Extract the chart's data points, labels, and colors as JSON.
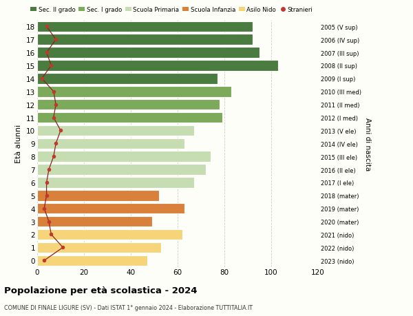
{
  "ages": [
    18,
    17,
    16,
    15,
    14,
    13,
    12,
    11,
    10,
    9,
    8,
    7,
    6,
    5,
    4,
    3,
    2,
    1,
    0
  ],
  "bar_values": [
    92,
    92,
    95,
    103,
    77,
    83,
    78,
    79,
    67,
    63,
    74,
    72,
    67,
    52,
    63,
    49,
    62,
    53,
    47
  ],
  "bar_colors": [
    "#4a7c3f",
    "#4a7c3f",
    "#4a7c3f",
    "#4a7c3f",
    "#4a7c3f",
    "#7aaa5a",
    "#7aaa5a",
    "#7aaa5a",
    "#c5ddb0",
    "#c5ddb0",
    "#c5ddb0",
    "#c5ddb0",
    "#c5ddb0",
    "#d9803a",
    "#d9803a",
    "#d9803a",
    "#f5d47a",
    "#f5d47a",
    "#f5d47a"
  ],
  "stranieri_values": [
    4,
    8,
    4,
    6,
    2,
    7,
    8,
    7,
    10,
    8,
    7,
    5,
    4,
    4,
    3,
    5,
    6,
    11,
    3
  ],
  "right_labels": [
    "2005 (V sup)",
    "2006 (IV sup)",
    "2007 (III sup)",
    "2008 (II sup)",
    "2009 (I sup)",
    "2010 (III med)",
    "2011 (II med)",
    "2012 (I med)",
    "2013 (V ele)",
    "2014 (IV ele)",
    "2015 (III ele)",
    "2016 (II ele)",
    "2017 (I ele)",
    "2018 (mater)",
    "2019 (mater)",
    "2020 (mater)",
    "2021 (nido)",
    "2022 (nido)",
    "2023 (nido)"
  ],
  "ylabel": "Età alunni",
  "right_ylabel": "Anni di nascita",
  "xlim": [
    0,
    120
  ],
  "xticks": [
    0,
    20,
    40,
    60,
    80,
    100,
    120
  ],
  "title": "Popolazione per età scolastica - 2024",
  "subtitle": "COMUNE DI FINALE LIGURE (SV) - Dati ISTAT 1° gennaio 2024 - Elaborazione TUTTITALIA.IT",
  "legend_entries": [
    "Sec. II grado",
    "Sec. I grado",
    "Scuola Primaria",
    "Scuola Infanzia",
    "Asilo Nido",
    "Stranieri"
  ],
  "legend_colors": [
    "#4a7c3f",
    "#7aaa5a",
    "#c5ddb0",
    "#d9803a",
    "#f5d47a",
    "#c0392b"
  ],
  "bg_color": "#fefef8",
  "grid_color": "#cccccc",
  "stranieri_color": "#c0392b",
  "stranieri_line_color": "#8b2020"
}
